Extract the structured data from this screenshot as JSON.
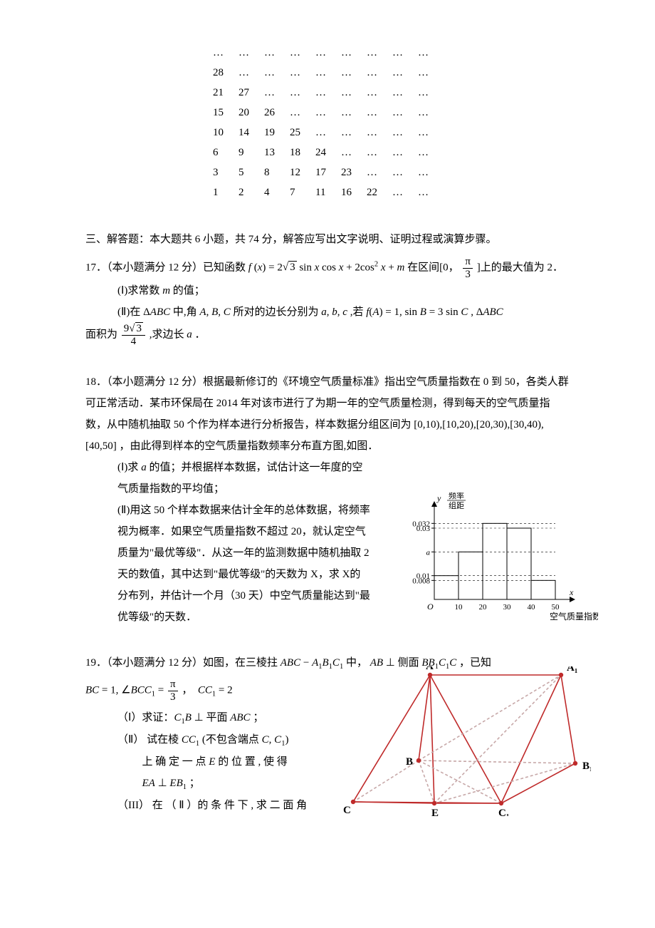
{
  "triangle": {
    "cols": 9,
    "rows": [
      [
        "…",
        "…",
        "…",
        "…",
        "…",
        "…",
        "…",
        "…",
        "…"
      ],
      [
        "28",
        "…",
        "…",
        "…",
        "…",
        "…",
        "…",
        "…",
        "…"
      ],
      [
        "21",
        "27",
        "…",
        "…",
        "…",
        "…",
        "…",
        "…",
        "…"
      ],
      [
        "15",
        "20",
        "26",
        "…",
        "…",
        "…",
        "…",
        "…",
        "…"
      ],
      [
        "10",
        "14",
        "19",
        "25",
        "…",
        "…",
        "…",
        "…",
        "…"
      ],
      [
        "6",
        "9",
        "13",
        "18",
        "24",
        "…",
        "…",
        "…",
        "…"
      ],
      [
        "3",
        "5",
        "8",
        "12",
        "17",
        "23",
        "…",
        "…",
        "…"
      ],
      [
        "1",
        "2",
        "4",
        "7",
        "11",
        "16",
        "22",
        "…",
        "…"
      ]
    ]
  },
  "section_title": "三、解答题：本大题共 6 小题，共 74 分，解答应写出文字说明、证明过程或演算步骤。",
  "p17": {
    "head_a": "17．（本小题满分 12 分）已知函数 ",
    "func": "f (x) = 2√3 sin x cos x + 2cos² x + m",
    "head_b": " 在区间[0，",
    "frac_pi3_num": "π",
    "frac_pi3_den": "3",
    "head_c": "]上的最大值为 2．",
    "part1": "(Ⅰ)求常数 m 的值；",
    "part2_a": "(Ⅱ)在 ΔABC 中,角 A, B, C 所对的边长分别为 a, b, c ,若 ",
    "part2_cond": "f (A) = 1, sin B = 3 sin C",
    "part2_b": " , ΔABC 面积为 ",
    "frac_area_num": "9√3",
    "frac_area_den": "4",
    "part2_c": " ,求边长 a ．"
  },
  "p18": {
    "head": "18．（本小题满分 12 分）根据最新修订的《环境空气质量标准》指出空气质量指数在 0 到 50，各类人群可正常活动．某市环保局在 2014 年对该市进行了为期一年的空气质量检测，得到每天的空气质量指数，从中随机抽取 50 个作为样本进行分析报告，样本数据分组区间为 [0,10),[10,20),[20,30),[30,40),[40,50] ，由此得到样本的空气质量指数频率分布直方图,如图．",
    "part1": "(Ⅰ)求 a 的值；并根据样本数据，试估计这一年度的空气质量指数的平均值；",
    "part2": "(Ⅱ)用这 50 个样本数据来估计全年的总体数据，将频率视为概率．如果空气质量指数不超过 20，就认定空气质量为\"最优等级\"．从这一年的监测数据中随机抽取 2 天的数值，其中达到\"最优等级\"的天数为 X，求 X的分布列，并估计一个月（30 天）中空气质量能达到\"最优等级\"的天数．",
    "histogram": {
      "y_label_top": "频率",
      "y_label_bot": "组距",
      "y_ticks": [
        "0.032",
        "0.03",
        "a",
        "0.01",
        "0.008"
      ],
      "y_tick_pos": [
        0.032,
        0.03,
        0.02,
        0.01,
        0.008
      ],
      "x_ticks": [
        "10",
        "20",
        "30",
        "40",
        "50"
      ],
      "x_label": "空气质量指数",
      "origin": "O",
      "bar_heights": [
        0.01,
        0.02,
        0.032,
        0.03,
        0.008
      ],
      "colors": {
        "axis": "#000000",
        "dash": "#000000",
        "bg": "#ffffff"
      }
    }
  },
  "p19": {
    "head_a": "19．（本小题满分 12 分）如图，在三棱拄 ",
    "prism_name": "ABC − A₁B₁C₁",
    "head_b": " 中，",
    "perp1": "AB ⊥ 侧面 BB₁C₁C",
    "head_c": " ，已知",
    "cond_a": "BC = 1, ∠BCC₁ = ",
    "frac_ang_num": "π",
    "frac_ang_den": "3",
    "cond_b": "，  CC₁ = 2",
    "part1": "（Ⅰ）求证：C₁B ⊥ 平面 ABC ；",
    "part2a": "（Ⅱ） 试在棱 CC₁ (不包含端点 C, C₁)",
    "part2b": "上 确 定 一 点 E 的 位 置 , 使 得",
    "part2c": "EA ⊥ EB₁ ；",
    "part3": "（III） 在 （ Ⅱ ）的 条 件 下 , 求 二 面 角",
    "figure": {
      "labels": {
        "A": "A",
        "A1": "A₁",
        "B": "B",
        "B1": "B₁",
        "C": "C",
        "C1": "C₁",
        "E": "E"
      },
      "cube": {
        "stroke": "#bf2a2a",
        "dash": "#c7a8a8"
      },
      "points": {
        "A": [
          116,
          0
        ],
        "A1": [
          300,
          0
        ],
        "B": [
          100,
          120
        ],
        "B1": [
          320,
          124
        ],
        "C": [
          8,
          178
        ],
        "C1": [
          216,
          180
        ],
        "E": [
          122,
          180
        ]
      }
    }
  }
}
